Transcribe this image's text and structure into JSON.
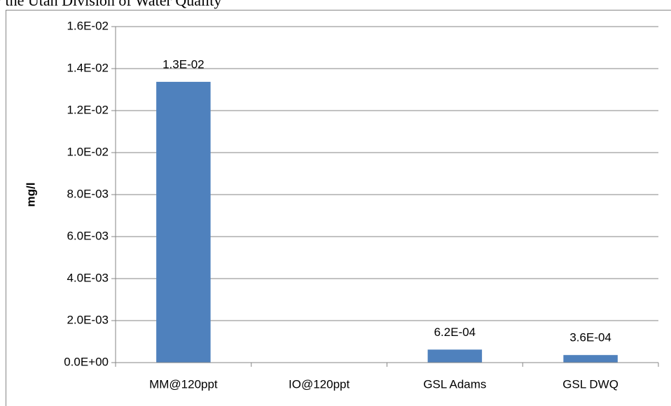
{
  "chart_data": {
    "type": "bar",
    "title": "y the Utah Division of Water Quality",
    "y_label": "mg/l",
    "categories": [
      "MM@120ppt",
      "IO@120ppt",
      "GSL Adams",
      "GSL DWQ"
    ],
    "values": [
      0.01337,
      null,
      0.00062,
      0.00036
    ],
    "value_labels": [
      "1.3E-02",
      null,
      "6.2E-04",
      "3.6E-04"
    ],
    "color": "#4f81bd",
    "ylim": [
      0,
      0.016
    ],
    "yticks": [
      {
        "value": 0,
        "label": "0.0E+00"
      },
      {
        "value": 0.002,
        "label": "2.0E-03"
      },
      {
        "value": 0.004,
        "label": "4.0E-03"
      },
      {
        "value": 0.006,
        "label": "6.0E-03"
      },
      {
        "value": 0.008,
        "label": "8.0E-03"
      },
      {
        "value": 0.01,
        "label": "1.0E-02"
      },
      {
        "value": 0.012,
        "label": "1.2E-02"
      },
      {
        "value": 0.014,
        "label": "1.4E-02"
      },
      {
        "value": 0.016,
        "label": "1.6E-02"
      }
    ],
    "grid": true
  }
}
